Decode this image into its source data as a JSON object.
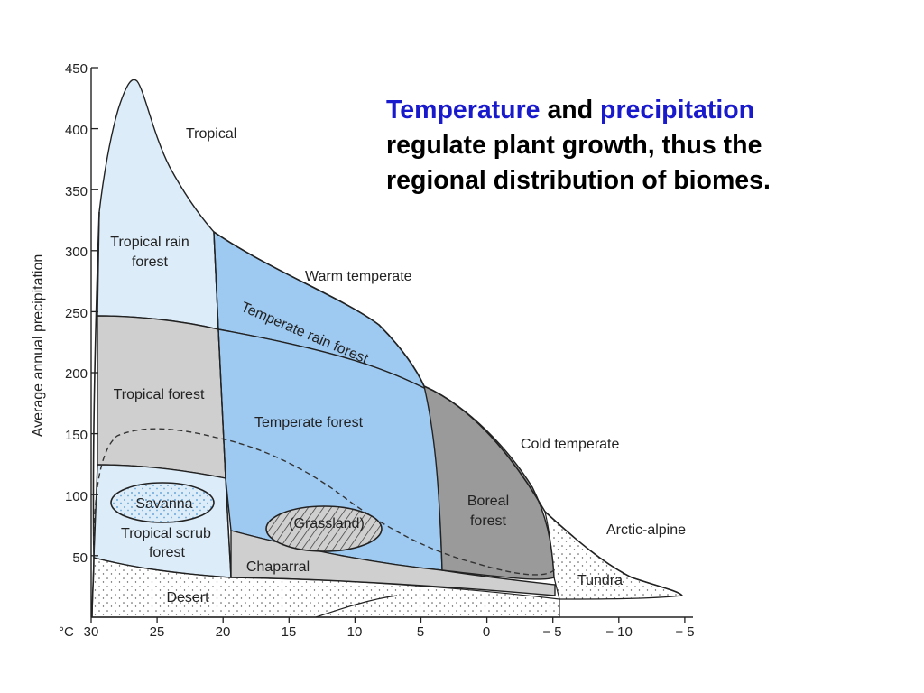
{
  "headline": {
    "keyword1": "Temperature",
    "connector": "and",
    "keyword2": "precipitation",
    "line2": "regulate plant growth, thus the",
    "line3": "regional distribution of biomes."
  },
  "axes": {
    "y_title": "Average annual precipitation",
    "y_ticks": [
      "450",
      "400",
      "350",
      "300",
      "250",
      "200",
      "150",
      "100",
      "50"
    ],
    "x_unit": "°C",
    "x_ticks": [
      "30",
      "25",
      "20",
      "15",
      "10",
      "5",
      "0",
      "− 5",
      "− 10",
      "− 5"
    ]
  },
  "zones": {
    "tropical": "Tropical",
    "warm_temperate": "Warm temperate",
    "cold_temperate": "Cold temperate",
    "arctic_alpine": "Arctic-alpine"
  },
  "biomes": {
    "tropical_rain_forest_1": "Tropical rain",
    "tropical_rain_forest_2": "forest",
    "tropical_forest": "Tropical forest",
    "savanna": "Savanna",
    "tropical_scrub_1": "Tropical scrub",
    "tropical_scrub_2": "forest",
    "desert": "Desert",
    "temperate_rain_forest": "Temperate rain forest",
    "temperate_forest": "Temperate forest",
    "grassland": "(Grassland)",
    "chaparral": "Chaparral",
    "boreal_1": "Boreal",
    "boreal_2": "forest",
    "tundra": "Tundra"
  },
  "colors": {
    "light_blue": "#dcecf9",
    "gray": "#cfcfcf",
    "medium_blue": "#9ecaf2",
    "dark_gray": "#9a9a9a",
    "desert": "#ffffff",
    "headline_keyword": "#1a1acd"
  }
}
